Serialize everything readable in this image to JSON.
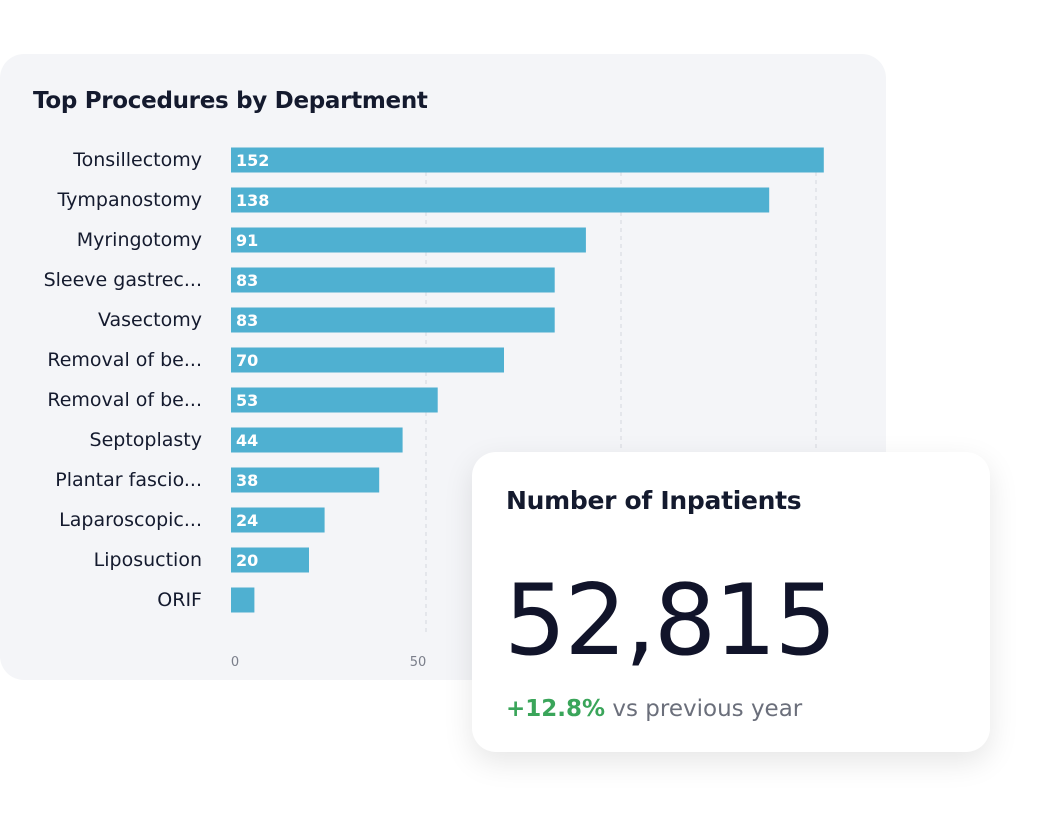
{
  "chart_data": {
    "type": "bar",
    "orientation": "horizontal",
    "title": "Top Procedures by Department",
    "categories": [
      "Tonsillectomy",
      "Tympanostomy",
      "Myringotomy",
      "Sleeve gastrec...",
      "Vasectomy",
      "Removal of be...",
      "Removal of be...",
      "Septoplasty",
      "Plantar fascio...",
      "Laparoscopic...",
      "Liposuction",
      "ORIF"
    ],
    "values": [
      152,
      138,
      91,
      83,
      83,
      70,
      53,
      44,
      38,
      24,
      20,
      6
    ],
    "labels": [
      "152",
      "138",
      "91",
      "83",
      "83",
      "70",
      "53",
      "44",
      "38",
      "24",
      "20",
      ""
    ],
    "xticks": [
      "0",
      "50"
    ],
    "gridlines": [
      50,
      100,
      150
    ],
    "xlim": [
      0,
      160
    ],
    "grid": true,
    "bar_color": "#4fb0d1"
  },
  "kpi": {
    "title": "Number of Inpatients",
    "value": "52,815",
    "delta": "+12.8%",
    "delta_suffix": " vs previous year",
    "delta_color": "#3aa55a"
  }
}
